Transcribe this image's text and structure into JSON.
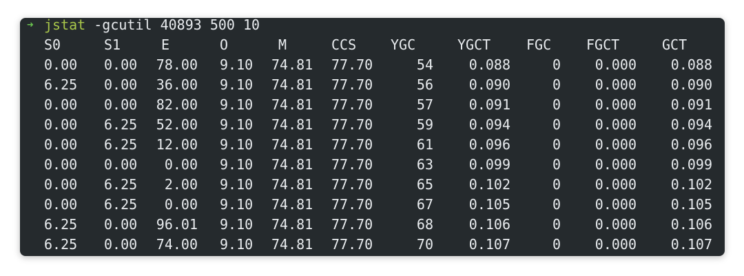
{
  "terminal": {
    "prompt_symbol": "➜",
    "command_name": "jstat",
    "command_args": " -gcutil 40893 500 10"
  },
  "table": {
    "headers": [
      "S0",
      "S1",
      "E",
      "O",
      "M",
      "CCS",
      "YGC",
      "YGCT",
      "FGC",
      "FGCT",
      "GCT"
    ],
    "rows": [
      [
        "0.00",
        "0.00",
        "78.00",
        "9.10",
        "74.81",
        "77.70",
        "54",
        "0.088",
        "0",
        "0.000",
        "0.088"
      ],
      [
        "6.25",
        "0.00",
        "36.00",
        "9.10",
        "74.81",
        "77.70",
        "56",
        "0.090",
        "0",
        "0.000",
        "0.090"
      ],
      [
        "0.00",
        "0.00",
        "82.00",
        "9.10",
        "74.81",
        "77.70",
        "57",
        "0.091",
        "0",
        "0.000",
        "0.091"
      ],
      [
        "0.00",
        "6.25",
        "52.00",
        "9.10",
        "74.81",
        "77.70",
        "59",
        "0.094",
        "0",
        "0.000",
        "0.094"
      ],
      [
        "0.00",
        "6.25",
        "12.00",
        "9.10",
        "74.81",
        "77.70",
        "61",
        "0.096",
        "0",
        "0.000",
        "0.096"
      ],
      [
        "0.00",
        "0.00",
        "0.00",
        "9.10",
        "74.81",
        "77.70",
        "63",
        "0.099",
        "0",
        "0.000",
        "0.099"
      ],
      [
        "0.00",
        "6.25",
        "2.00",
        "9.10",
        "74.81",
        "77.70",
        "65",
        "0.102",
        "0",
        "0.000",
        "0.102"
      ],
      [
        "0.00",
        "6.25",
        "0.00",
        "9.10",
        "74.81",
        "77.70",
        "67",
        "0.105",
        "0",
        "0.000",
        "0.105"
      ],
      [
        "6.25",
        "0.00",
        "96.01",
        "9.10",
        "74.81",
        "77.70",
        "68",
        "0.106",
        "0",
        "0.000",
        "0.106"
      ],
      [
        "6.25",
        "0.00",
        "74.00",
        "9.10",
        "74.81",
        "77.70",
        "70",
        "0.107",
        "0",
        "0.000",
        "0.107"
      ]
    ]
  },
  "colors": {
    "background": "#252a2d",
    "text": "#e9ecef",
    "prompt": "#6ac34f",
    "command": "#a8c64a"
  }
}
